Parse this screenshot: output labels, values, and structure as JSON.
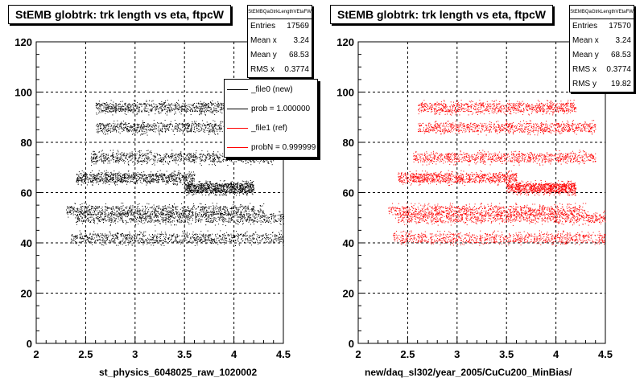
{
  "chart_data": [
    {
      "type": "scatter",
      "title": "StEMB globtrk: trk length vs eta, ftpcW",
      "xlabel": "st_physics_6048025_raw_1020002",
      "ylabel": "",
      "xlim": [
        2,
        4.5
      ],
      "ylim": [
        0,
        120
      ],
      "x_ticks": [
        "2",
        "2.5",
        "3",
        "3.5",
        "4",
        "4.5"
      ],
      "y_ticks": [
        "0",
        "20",
        "40",
        "60",
        "80",
        "100",
        "120"
      ],
      "grid": true,
      "marker_color": "#000000",
      "stats": {
        "name": "StEMBQaGtrkLengthVEtaFW",
        "rows": [
          {
            "label": "Entries",
            "value": "17569"
          },
          {
            "label": "Mean x",
            "value": "3.24"
          },
          {
            "label": "Mean y",
            "value": "68.53"
          },
          {
            "label": "RMS x",
            "value": "0.3774"
          }
        ]
      },
      "legend": {
        "placement": "right",
        "entries": [
          {
            "label": "_file0 (new)",
            "color": "#000000"
          },
          {
            "label": "prob = 1.000000",
            "color": "#000000"
          },
          {
            "label": "_file1 (ref)",
            "color": "#ff0000"
          },
          {
            "label": "probN = 0.999999",
            "color": "#ff0000"
          }
        ]
      },
      "bands": [
        {
          "y": 42,
          "x_range": [
            2.35,
            4.5
          ]
        },
        {
          "y": 50,
          "x_range": [
            2.4,
            4.5
          ]
        },
        {
          "y": 53,
          "x_range": [
            2.3,
            4.3
          ]
        },
        {
          "y": 62,
          "x_range": [
            3.5,
            4.2
          ]
        },
        {
          "y": 66,
          "x_range": [
            2.4,
            3.6
          ]
        },
        {
          "y": 74,
          "x_range": [
            2.55,
            4.4
          ]
        },
        {
          "y": 86,
          "x_range": [
            2.6,
            4.4
          ]
        },
        {
          "y": 94,
          "x_range": [
            2.6,
            4.2
          ]
        }
      ]
    },
    {
      "type": "scatter",
      "title": "StEMB globtrk: trk length vs eta, ftpcW",
      "xlabel": "new/daq_sl302/year_2005/CuCu200_MinBias/",
      "ylabel": "",
      "xlim": [
        2,
        4.5
      ],
      "ylim": [
        0,
        120
      ],
      "x_ticks": [
        "2",
        "2.5",
        "3",
        "3.5",
        "4",
        "4.5"
      ],
      "y_ticks": [
        "0",
        "20",
        "40",
        "60",
        "80",
        "100",
        "120"
      ],
      "grid": true,
      "marker_color": "#ff0000",
      "stats": {
        "name": "StEMBQaGtrkLengthVEtaFW",
        "rows": [
          {
            "label": "Entries",
            "value": "17570"
          },
          {
            "label": "Mean x",
            "value": "3.24"
          },
          {
            "label": "Mean y",
            "value": "68.53"
          },
          {
            "label": "RMS x",
            "value": "0.3774"
          },
          {
            "label": "RMS y",
            "value": "19.82"
          }
        ]
      },
      "bands": [
        {
          "y": 42,
          "x_range": [
            2.35,
            4.5
          ]
        },
        {
          "y": 50,
          "x_range": [
            2.4,
            4.5
          ]
        },
        {
          "y": 53,
          "x_range": [
            2.3,
            4.3
          ]
        },
        {
          "y": 62,
          "x_range": [
            3.5,
            4.2
          ]
        },
        {
          "y": 66,
          "x_range": [
            2.4,
            3.6
          ]
        },
        {
          "y": 74,
          "x_range": [
            2.55,
            4.4
          ]
        },
        {
          "y": 86,
          "x_range": [
            2.6,
            4.4
          ]
        },
        {
          "y": 94,
          "x_range": [
            2.6,
            4.2
          ]
        }
      ]
    }
  ]
}
